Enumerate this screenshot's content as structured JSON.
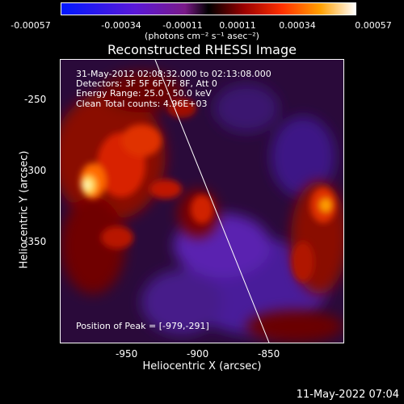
{
  "colorbar": {
    "ticks": [
      "-0.00057",
      "-0.00034",
      "-0.00011",
      "0.00011",
      "0.00034",
      "0.00057"
    ],
    "unit_label": "(photons cm⁻² s⁻¹ asec⁻²)"
  },
  "plot": {
    "title": "Reconstructed RHESSI Image",
    "info_lines": [
      "31-May-2012 02:08:32.000 to 02:13:08.000",
      "Detectors: 3F 5F 6F 7F 8F, Att 0",
      "Energy Range: 25.0 - 50.0 keV",
      "Clean     Total counts: 4.96E+03"
    ],
    "peak_text": "Position of Peak = [-979,-291]",
    "x_label": "Heliocentric X (arcsec)",
    "y_label": "Heliocentric Y (arcsec)",
    "x_ticks": [
      "-950",
      "-900",
      "-850"
    ],
    "y_ticks": [
      "-250",
      "-300",
      "-350"
    ]
  },
  "footer": {
    "timestamp": "11-May-2022 07:04"
  }
}
